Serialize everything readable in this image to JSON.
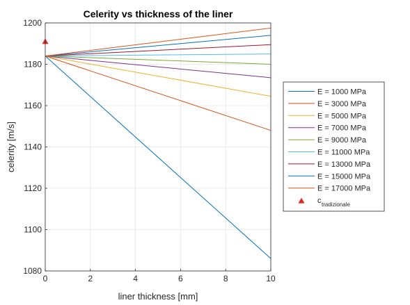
{
  "chart_data": {
    "type": "line",
    "title": "Celerity vs thickness of the liner",
    "xlabel": "liner thickness [mm]",
    "ylabel": "celerity [m/s]",
    "xlim": [
      0,
      10
    ],
    "ylim": [
      1080,
      1200
    ],
    "xticks": [
      "0",
      "2",
      "4",
      "6",
      "8",
      "10"
    ],
    "yticks": [
      "1080",
      "1100",
      "1120",
      "1140",
      "1160",
      "1180",
      "1200"
    ],
    "grid": true,
    "legend_position": "right",
    "series": [
      {
        "name": "E = 1000 MPa",
        "color": "#0072BD",
        "x": [
          0,
          10
        ],
        "y": [
          1184,
          1086
        ]
      },
      {
        "name": "E = 3000 MPa",
        "color": "#D95319",
        "x": [
          0,
          10
        ],
        "y": [
          1184,
          1148
        ]
      },
      {
        "name": "E = 5000 MPa",
        "color": "#EDB120",
        "x": [
          0,
          10
        ],
        "y": [
          1184,
          1164.5
        ]
      },
      {
        "name": "E = 7000 MPa",
        "color": "#7E2F8E",
        "x": [
          0,
          10
        ],
        "y": [
          1184,
          1173.5
        ]
      },
      {
        "name": "E = 9000 MPa",
        "color": "#77AC30",
        "x": [
          0,
          10
        ],
        "y": [
          1184,
          1180
        ]
      },
      {
        "name": "E = 11000 MPa",
        "color": "#4DBEEE",
        "x": [
          0,
          10
        ],
        "y": [
          1184,
          1185
        ]
      },
      {
        "name": "E = 13000 MPa",
        "color": "#A2142F",
        "x": [
          0,
          10
        ],
        "y": [
          1184,
          1189.5
        ]
      },
      {
        "name": "E = 15000 MPa",
        "color": "#0072BD",
        "x": [
          0,
          10
        ],
        "y": [
          1184,
          1194
        ]
      },
      {
        "name": "E = 17000 MPa",
        "color": "#D95319",
        "x": [
          0,
          10
        ],
        "y": [
          1184,
          1197.5
        ]
      }
    ],
    "marker": {
      "name_main": "c",
      "name_sub": "tradizionale",
      "color": "#E8281E",
      "shape": "triangle",
      "x": 0,
      "y": 1191
    }
  }
}
